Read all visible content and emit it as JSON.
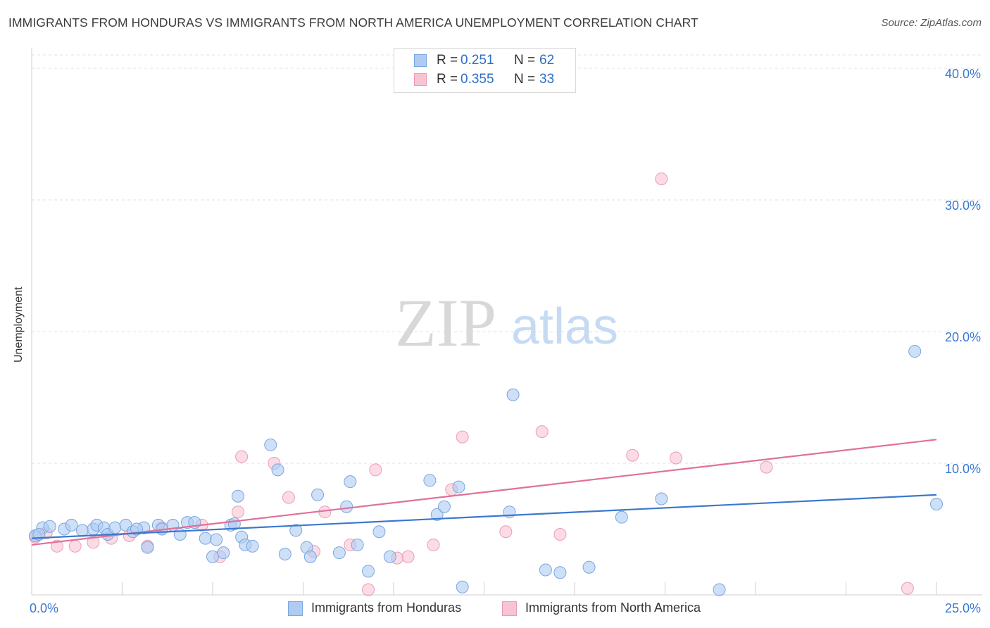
{
  "title": "IMMIGRANTS FROM HONDURAS VS IMMIGRANTS FROM NORTH AMERICA UNEMPLOYMENT CORRELATION CHART",
  "source": "Source: ZipAtlas.com",
  "watermark": {
    "zip": "ZIP",
    "atlas": "atlas"
  },
  "legend": {
    "rows": [
      {
        "r_label": "R =",
        "r_value": "0.251",
        "n_label": "N =",
        "n_value": "62"
      },
      {
        "r_label": "R =",
        "r_value": "0.355",
        "n_label": "N =",
        "n_value": "33"
      }
    ]
  },
  "colors": {
    "blue_fill": "#aecbf2",
    "blue_stroke": "#7aa6e0",
    "blue_line": "#3a78d0",
    "pink_fill": "#f8c4d4",
    "pink_stroke": "#ec9bb5",
    "pink_line": "#e0709a",
    "axis_text": "#3a78d0",
    "grid": "#e0e0e0"
  },
  "chart_data": {
    "type": "scatter",
    "title": "IMMIGRANTS FROM HONDURAS VS IMMIGRANTS FROM NORTH AMERICA UNEMPLOYMENT CORRELATION CHART",
    "xlabel": "",
    "ylabel": "Unemployment",
    "xlim": [
      0,
      25
    ],
    "ylim": [
      0,
      40
    ],
    "x_tick_labels": [
      "0.0%",
      "25.0%"
    ],
    "y_ticks": [
      10,
      20,
      30,
      40
    ],
    "y_tick_labels": [
      "10.0%",
      "20.0%",
      "30.0%",
      "40.0%"
    ],
    "grid": "horizontal dashed",
    "legend_position": "top-center",
    "series": [
      {
        "name": "Immigrants from Honduras",
        "color": "#aecbf2",
        "trend": {
          "x": [
            0,
            25
          ],
          "y": [
            4.3,
            7.6
          ]
        },
        "points": [
          [
            0.1,
            4.5
          ],
          [
            0.3,
            5.1
          ],
          [
            0.5,
            5.2
          ],
          [
            0.9,
            5.0
          ],
          [
            1.1,
            5.3
          ],
          [
            1.4,
            4.9
          ],
          [
            1.7,
            5.0
          ],
          [
            1.8,
            5.3
          ],
          [
            2.0,
            5.1
          ],
          [
            2.1,
            4.6
          ],
          [
            2.3,
            5.1
          ],
          [
            2.6,
            5.3
          ],
          [
            2.8,
            4.8
          ],
          [
            3.1,
            5.1
          ],
          [
            3.2,
            3.6
          ],
          [
            3.5,
            5.3
          ],
          [
            3.6,
            5.0
          ],
          [
            3.9,
            5.3
          ],
          [
            4.1,
            4.6
          ],
          [
            4.3,
            5.5
          ],
          [
            4.5,
            5.5
          ],
          [
            4.8,
            4.3
          ],
          [
            5.0,
            2.9
          ],
          [
            5.1,
            4.2
          ],
          [
            5.3,
            3.2
          ],
          [
            5.5,
            5.3
          ],
          [
            5.8,
            4.4
          ],
          [
            5.7,
            7.5
          ],
          [
            5.9,
            3.8
          ],
          [
            6.1,
            3.7
          ],
          [
            6.6,
            11.4
          ],
          [
            6.8,
            9.5
          ],
          [
            7.0,
            3.1
          ],
          [
            7.3,
            4.9
          ],
          [
            7.6,
            3.6
          ],
          [
            7.7,
            2.9
          ],
          [
            7.9,
            7.6
          ],
          [
            8.5,
            3.2
          ],
          [
            8.8,
            8.6
          ],
          [
            8.7,
            6.7
          ],
          [
            9.0,
            3.8
          ],
          [
            9.3,
            1.8
          ],
          [
            9.6,
            4.8
          ],
          [
            9.9,
            2.9
          ],
          [
            11.0,
            8.7
          ],
          [
            11.2,
            6.1
          ],
          [
            11.4,
            6.7
          ],
          [
            11.8,
            8.2
          ],
          [
            11.9,
            0.6
          ],
          [
            13.2,
            6.3
          ],
          [
            13.3,
            15.2
          ],
          [
            14.2,
            1.9
          ],
          [
            14.6,
            1.7
          ],
          [
            15.4,
            2.1
          ],
          [
            16.3,
            5.9
          ],
          [
            17.4,
            7.3
          ],
          [
            19.0,
            0.4
          ],
          [
            24.4,
            18.5
          ],
          [
            25.0,
            6.9
          ],
          [
            0.2,
            4.6
          ],
          [
            2.9,
            5.0
          ],
          [
            5.6,
            5.4
          ]
        ]
      },
      {
        "name": "Immigrants from North America",
        "color": "#f8c4d4",
        "trend": {
          "x": [
            0,
            25
          ],
          "y": [
            3.8,
            11.8
          ]
        },
        "points": [
          [
            0.1,
            4.4
          ],
          [
            0.4,
            4.7
          ],
          [
            0.7,
            3.7
          ],
          [
            1.2,
            3.7
          ],
          [
            1.7,
            4.0
          ],
          [
            2.2,
            4.3
          ],
          [
            2.7,
            4.5
          ],
          [
            3.2,
            3.7
          ],
          [
            3.6,
            5.1
          ],
          [
            4.7,
            5.3
          ],
          [
            5.2,
            2.9
          ],
          [
            5.8,
            10.5
          ],
          [
            5.7,
            6.3
          ],
          [
            6.7,
            10.0
          ],
          [
            7.1,
            7.4
          ],
          [
            7.8,
            3.3
          ],
          [
            8.1,
            6.3
          ],
          [
            8.8,
            3.8
          ],
          [
            9.3,
            0.4
          ],
          [
            9.5,
            9.5
          ],
          [
            10.1,
            2.8
          ],
          [
            10.4,
            2.9
          ],
          [
            11.1,
            3.8
          ],
          [
            11.6,
            8.0
          ],
          [
            11.9,
            12.0
          ],
          [
            13.1,
            4.8
          ],
          [
            14.1,
            12.4
          ],
          [
            14.6,
            4.6
          ],
          [
            16.6,
            10.6
          ],
          [
            17.4,
            31.6
          ],
          [
            17.8,
            10.4
          ],
          [
            20.3,
            9.7
          ],
          [
            24.2,
            0.5
          ]
        ]
      }
    ]
  },
  "bottom_legend": [
    "Immigrants from Honduras",
    "Immigrants from North America"
  ]
}
